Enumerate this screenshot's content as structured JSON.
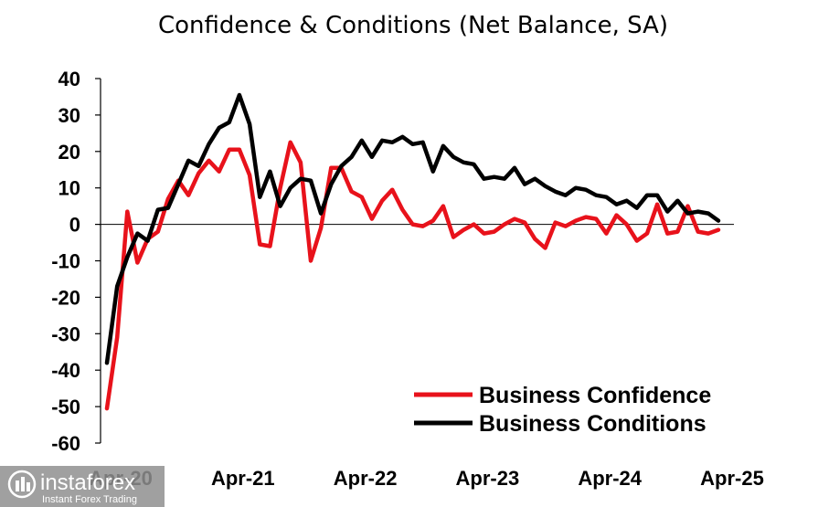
{
  "chart_data": {
    "type": "line",
    "title": "Confidence & Conditions (Net Balance, SA)",
    "xlabel": "",
    "ylabel": "",
    "ylim": [
      -60,
      40
    ],
    "yticks": [
      40,
      30,
      20,
      10,
      0,
      -10,
      -20,
      -30,
      -40,
      -50,
      -60
    ],
    "x_tick_labels": [
      "Apr-20",
      "Apr-21",
      "Apr-22",
      "Apr-23",
      "Apr-24",
      "Apr-25"
    ],
    "x_start": "Apr-20",
    "x_end": "Jun-25",
    "grid": false,
    "legend_position": "bottom-right",
    "series": [
      {
        "name": "Business Confidence",
        "color": "#e8121b",
        "values": [
          -50.5,
          -31,
          3.5,
          -10.5,
          -4,
          -2,
          7,
          12,
          8,
          14,
          17.5,
          14.5,
          20.5,
          20.5,
          13.5,
          -5.5,
          -6,
          10,
          22.5,
          17,
          -10,
          -1,
          15.5,
          15.5,
          9,
          7.5,
          1.5,
          6.5,
          9.5,
          4,
          0,
          -0.5,
          1,
          5,
          -3.5,
          -1.5,
          0,
          -2.5,
          -2,
          0,
          1.5,
          0.5,
          -4,
          -6.5,
          0.5,
          -0.5,
          1,
          2,
          1.5,
          -2.5,
          2.5,
          0,
          -4.5,
          -2.5,
          5.5,
          -2.5,
          -2,
          5,
          -2,
          -2.5,
          -1.5
        ]
      },
      {
        "name": "Business Conditions",
        "color": "#000000",
        "values": [
          -38,
          -17,
          -9,
          -2.5,
          -4.5,
          4,
          4.5,
          11,
          17.5,
          16,
          22,
          26.5,
          28,
          35.5,
          27.5,
          7.5,
          14.5,
          5,
          10,
          12.5,
          12,
          3,
          11,
          16,
          18.5,
          23,
          18.5,
          23,
          22.5,
          24,
          22,
          22.5,
          14.5,
          21.5,
          18.5,
          17,
          16.5,
          12.5,
          13,
          12.5,
          15.5,
          11,
          12.5,
          10.5,
          9,
          8,
          10,
          9.5,
          8,
          7.5,
          5.5,
          6.5,
          4.5,
          8,
          8,
          3.5,
          6.5,
          3,
          3.5,
          3,
          1
        ]
      }
    ]
  },
  "watermark": {
    "brand": "instaforex",
    "tagline": "Instant Forex Trading"
  }
}
